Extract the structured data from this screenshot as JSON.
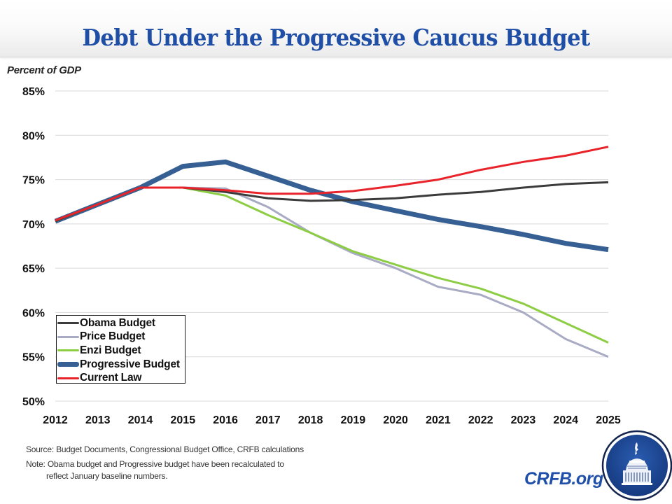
{
  "header": {
    "title": "Debt Under the Progressive Caucus Budget"
  },
  "chart_data": {
    "type": "line",
    "title": "Debt Under the Progressive Caucus Budget",
    "ylabel": "Percent of GDP",
    "xlabel": "",
    "x": [
      2012,
      2013,
      2014,
      2015,
      2016,
      2017,
      2018,
      2019,
      2020,
      2021,
      2022,
      2023,
      2024,
      2025
    ],
    "xtick_labels": [
      "2012",
      "2013",
      "2014",
      "2015",
      "2016",
      "2017",
      "2018",
      "2019",
      "2020",
      "2021",
      "2022",
      "2023",
      "2024",
      "2025"
    ],
    "ylim": [
      50,
      85
    ],
    "yticks": [
      50,
      55,
      60,
      65,
      70,
      75,
      80,
      85
    ],
    "ytick_labels": [
      "50%",
      "55%",
      "60%",
      "65%",
      "70%",
      "75%",
      "80%",
      "85%"
    ],
    "grid": "horizontal",
    "legend_position": "bottom-left",
    "series": [
      {
        "name": "Obama Budget",
        "color": "#3b3b3b",
        "style": "thin",
        "values": [
          70.3,
          72.2,
          74.1,
          74.1,
          73.6,
          72.9,
          72.6,
          72.7,
          72.9,
          73.3,
          73.6,
          74.1,
          74.5,
          74.7
        ]
      },
      {
        "name": "Price Budget",
        "color": "#a9abc4",
        "style": "thin",
        "values": [
          70.3,
          72.2,
          74.1,
          74.1,
          74.0,
          71.9,
          69.0,
          66.7,
          65.0,
          62.9,
          62.0,
          60.0,
          57.0,
          55.0
        ]
      },
      {
        "name": "Enzi Budget",
        "color": "#8dcd44",
        "style": "thin",
        "values": [
          70.3,
          72.2,
          74.1,
          74.1,
          73.2,
          71.0,
          69.0,
          66.9,
          65.4,
          63.9,
          62.7,
          61.0,
          58.8,
          56.6
        ]
      },
      {
        "name": "Progressive Budget",
        "color": "#365f93",
        "style": "thick",
        "values": [
          70.3,
          72.2,
          74.1,
          76.5,
          77.0,
          75.4,
          73.8,
          72.5,
          71.5,
          70.5,
          69.7,
          68.8,
          67.8,
          67.1
        ]
      },
      {
        "name": "Current Law",
        "color": "#e8232a",
        "style": "thin",
        "values": [
          70.4,
          72.2,
          74.1,
          74.1,
          73.8,
          73.4,
          73.4,
          73.7,
          74.3,
          75.0,
          76.1,
          77.0,
          77.7,
          78.7
        ]
      }
    ],
    "draw_order": [
      "Progressive Budget",
      "Price Budget",
      "Enzi Budget",
      "Obama Budget",
      "Current Law"
    ]
  },
  "footer": {
    "source": "Source: Budget Documents, Congressional Budget Office, CRFB calculations",
    "note_line1": "Note: Obama budget and Progressive budget have been recalculated to",
    "note_line2": "reflect January baseline numbers.",
    "brand": "CRFB.org",
    "logo_icon": "capitol-dome-seal"
  }
}
